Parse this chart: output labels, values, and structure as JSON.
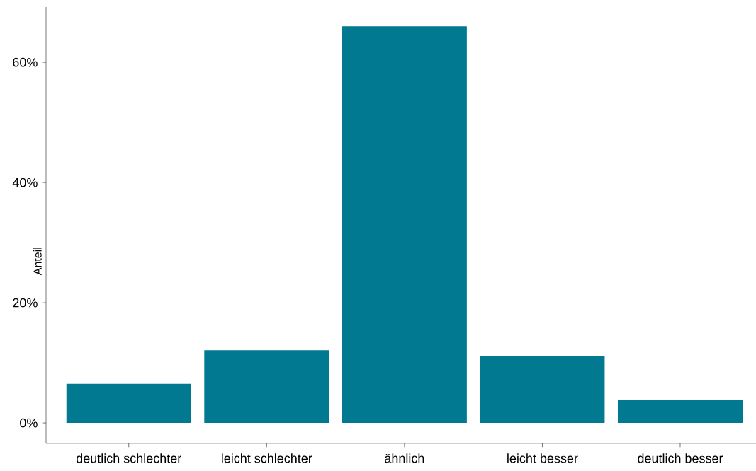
{
  "chart_data": {
    "type": "bar",
    "ylabel": "Anteil",
    "categories": [
      "deutlich schlechter",
      "leicht schlechter",
      "ähnlich",
      "leicht besser",
      "deutlich besser"
    ],
    "values": [
      6.5,
      12.1,
      66.0,
      11.1,
      3.9
    ],
    "color": "#007991",
    "ylim": [
      -3.4,
      69.2
    ],
    "yticks": [
      {
        "value": 0,
        "label": "0%"
      },
      {
        "value": 20,
        "label": "20%"
      },
      {
        "value": 40,
        "label": "40%"
      },
      {
        "value": 60,
        "label": "60%"
      }
    ],
    "grid": false
  }
}
